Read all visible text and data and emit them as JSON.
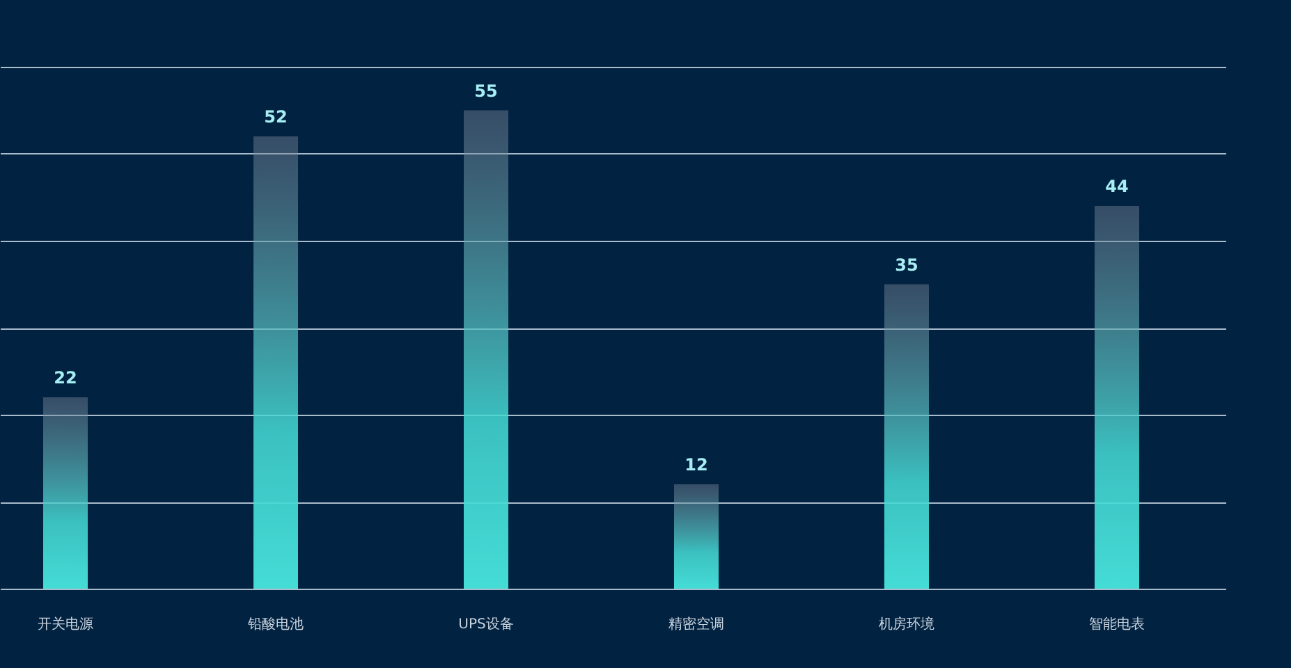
{
  "chart_data": {
    "type": "bar",
    "categories": [
      "开关电源",
      "铅酸电池",
      "UPS设备",
      "精密空调",
      "机房环境",
      "智能电表"
    ],
    "values": [
      22,
      52,
      55,
      12,
      35,
      44
    ],
    "color": "#45dcd6",
    "ylim": [
      0,
      60
    ],
    "yticks": [
      {
        "value": 0,
        "label": null
      },
      {
        "value": 10,
        "label": null
      },
      {
        "value": 20,
        "label": null
      },
      {
        "value": 30,
        "label": null
      },
      {
        "value": 40,
        "label": null
      },
      {
        "value": 50,
        "label": null
      },
      {
        "value": 60,
        "label": null
      }
    ],
    "grid": "y",
    "tick_labels": "x",
    "data_labels": true
  }
}
